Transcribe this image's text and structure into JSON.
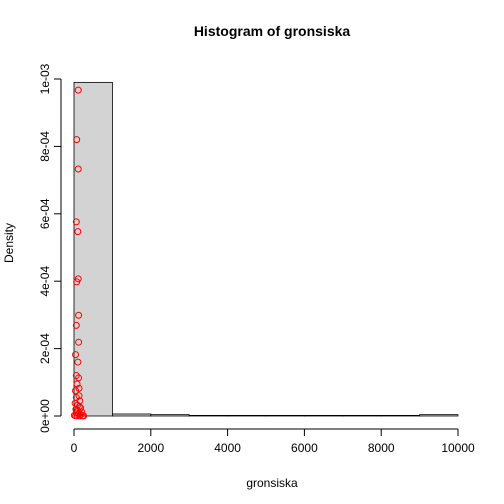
{
  "chart_data": {
    "type": "histogram",
    "title": "Histogram of gronsiska",
    "xlabel": "gronsiska",
    "ylabel": "Density",
    "xlim": [
      0,
      10000
    ],
    "ylim": [
      0,
      0.001
    ],
    "x_ticks": [
      0,
      2000,
      4000,
      6000,
      8000,
      10000
    ],
    "x_tick_labels": [
      "0",
      "2000",
      "4000",
      "6000",
      "8000",
      "10000"
    ],
    "y_ticks": [
      0,
      0.0002,
      0.0004,
      0.0006,
      0.0008,
      0.001
    ],
    "y_tick_labels": [
      "0e+00",
      "2e-04",
      "4e-04",
      "6e-04",
      "8e-04",
      "1e-03"
    ],
    "bins": [
      {
        "from": 0,
        "to": 1000,
        "density": 0.00099
      },
      {
        "from": 1000,
        "to": 2000,
        "density": 6e-06
      },
      {
        "from": 2000,
        "to": 3000,
        "density": 4e-06
      },
      {
        "from": 3000,
        "to": 4000,
        "density": 8e-07
      },
      {
        "from": 4000,
        "to": 5000,
        "density": 4e-07
      },
      {
        "from": 5000,
        "to": 6000,
        "density": 4e-07
      },
      {
        "from": 6000,
        "to": 7000,
        "density": 4e-07
      },
      {
        "from": 7000,
        "to": 8000,
        "density": 4e-07
      },
      {
        "from": 8000,
        "to": 9000,
        "density": 4e-07
      },
      {
        "from": 9000,
        "to": 10000,
        "density": 4e-06
      }
    ],
    "bar_fill": "#d3d3d3",
    "bar_stroke": "#000000",
    "point_color": "#ff0000",
    "points": [
      {
        "x": 110,
        "y": 0.000967
      },
      {
        "x": 70,
        "y": 0.00082
      },
      {
        "x": 110,
        "y": 0.000733
      },
      {
        "x": 60,
        "y": 0.000576
      },
      {
        "x": 100,
        "y": 0.000547
      },
      {
        "x": 110,
        "y": 0.000407
      },
      {
        "x": 70,
        "y": 0.000398
      },
      {
        "x": 120,
        "y": 0.000299
      },
      {
        "x": 60,
        "y": 0.000269
      },
      {
        "x": 120,
        "y": 0.000219
      },
      {
        "x": 40,
        "y": 0.000182
      },
      {
        "x": 100,
        "y": 0.00016
      },
      {
        "x": 60,
        "y": 0.00012
      },
      {
        "x": 120,
        "y": 0.000113
      },
      {
        "x": 80,
        "y": 9.5e-05
      },
      {
        "x": 130,
        "y": 8.2e-05
      },
      {
        "x": 40,
        "y": 7.5e-05
      },
      {
        "x": 130,
        "y": 6e-05
      },
      {
        "x": 60,
        "y": 5.5e-05
      },
      {
        "x": 150,
        "y": 4.5e-05
      },
      {
        "x": 30,
        "y": 3.8e-05
      },
      {
        "x": 90,
        "y": 3.2e-05
      },
      {
        "x": 140,
        "y": 2.8e-05
      },
      {
        "x": 170,
        "y": 2.4e-05
      },
      {
        "x": 50,
        "y": 2e-05
      },
      {
        "x": 100,
        "y": 1.6e-05
      },
      {
        "x": 200,
        "y": 1.2e-05
      },
      {
        "x": 60,
        "y": 9e-06
      },
      {
        "x": 120,
        "y": 6e-06
      },
      {
        "x": 180,
        "y": 4e-06
      },
      {
        "x": 10,
        "y": 2e-06
      },
      {
        "x": 40,
        "y": 1e-06
      },
      {
        "x": 80,
        "y": 5e-07
      },
      {
        "x": 150,
        "y": 3e-07
      },
      {
        "x": 220,
        "y": 2e-07
      },
      {
        "x": 250,
        "y": 1e-07
      }
    ]
  }
}
